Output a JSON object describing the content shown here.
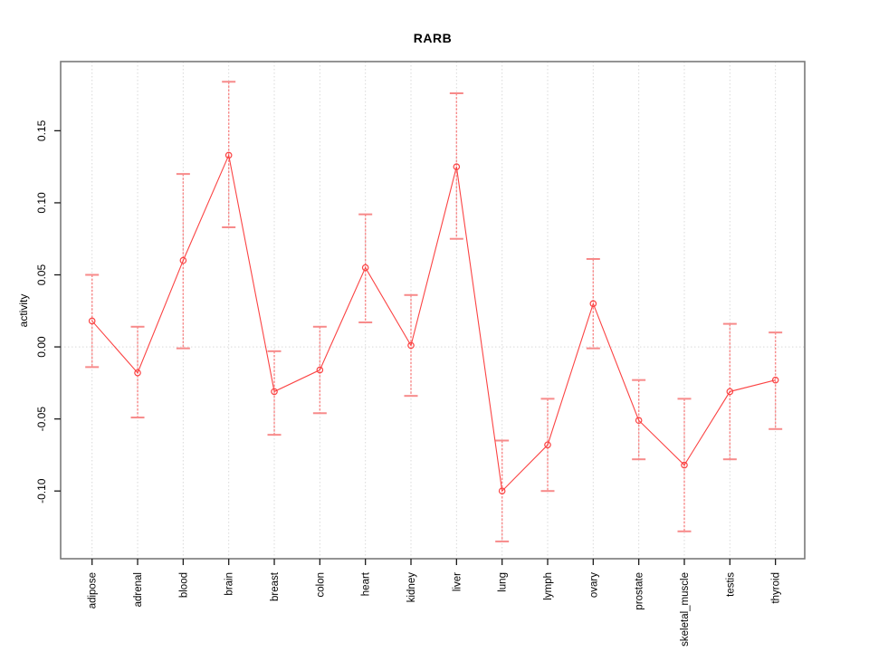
{
  "title": "RARB",
  "chart_data": {
    "type": "line",
    "title": "RARB",
    "xlabel": "",
    "ylabel": "activity",
    "legend_position": "none",
    "grid": "dotted vertical gridline at each category; dotted horizontal gridline at y=0",
    "categories": [
      "adipose",
      "adrenal",
      "blood",
      "brain",
      "breast",
      "colon",
      "heart",
      "kidney",
      "liver",
      "lung",
      "lymph",
      "ovary",
      "prostate",
      "skeletal_muscle",
      "testis",
      "thyroid"
    ],
    "series": [
      {
        "name": "activity",
        "values": [
          0.018,
          -0.018,
          0.06,
          0.133,
          -0.031,
          -0.016,
          0.055,
          0.001,
          0.125,
          -0.1,
          -0.068,
          0.03,
          -0.051,
          -0.082,
          -0.031,
          -0.023
        ],
        "error_high": [
          0.05,
          0.014,
          0.12,
          0.184,
          -0.003,
          0.014,
          0.092,
          0.036,
          0.176,
          -0.065,
          -0.036,
          0.061,
          -0.023,
          -0.036,
          0.016,
          0.01
        ],
        "error_low": [
          -0.014,
          -0.049,
          -0.001,
          0.083,
          -0.061,
          -0.046,
          0.017,
          -0.034,
          0.075,
          -0.135,
          -0.1,
          -0.001,
          -0.078,
          -0.128,
          -0.078,
          -0.057
        ]
      }
    ],
    "ylim": [
      -0.147,
      0.198
    ],
    "yticks": [
      -0.1,
      -0.05,
      0.0,
      0.05,
      0.1,
      0.15
    ],
    "ytick_labels": [
      "-0.10",
      "-0.05",
      "0.00",
      "0.05",
      "0.10",
      "0.15"
    ],
    "colors": {
      "line": "#fb4343",
      "point": "#fb4343",
      "error_bar": "#f78a8a",
      "grid": "#d9d9d9",
      "frame": "#7a7a7a",
      "tick": "#1a1a1a",
      "text": "#000000"
    }
  }
}
